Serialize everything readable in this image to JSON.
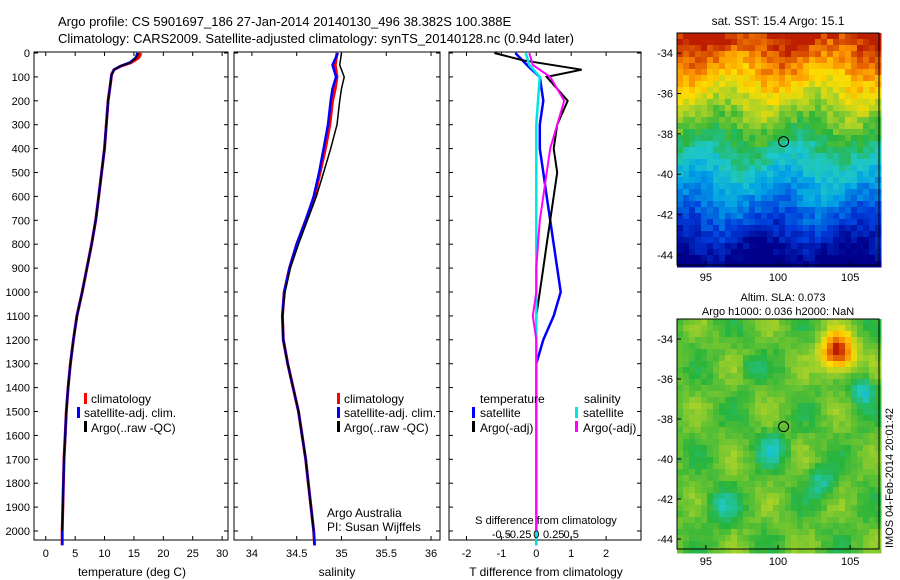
{
  "header": {
    "title_line1": "Argo profile: CS 5901697_186 27-Jan-2014 20140130_496 38.382S 100.388E",
    "title_line2": "Climatology: CARS2009. Satellite-adjusted climatology: synTS_20140128.nc (0.94d later)"
  },
  "colors": {
    "climatology": "#ff0000",
    "satellite": "#0000ff",
    "argo": "#000000",
    "salinity_satellite": "#00e5e5",
    "salinity_argo": "#ff00ff"
  },
  "annotations": {
    "credit1": "Argo Australia",
    "credit2": "PI: Susan Wijffels",
    "sst_title": "sat. SST: 15.4 Argo: 15.1",
    "sla_title1": "Altim. SLA: 0.073",
    "sla_title2": "Argo h1000: 0.036 h2000: NaN",
    "vertical_stamp": "IMOS 04-Feb-2014 20:01:42",
    "diff_s_label": "S difference from climatology"
  },
  "chart_data": [
    {
      "type": "line",
      "name": "temperature",
      "xlabel": "temperature (deg C)",
      "xlim": [
        -2,
        31
      ],
      "ylim": [
        2100,
        0
      ],
      "xticks": [
        0,
        5,
        10,
        15,
        20,
        25,
        30
      ],
      "yticks": [
        0,
        100,
        200,
        300,
        400,
        500,
        600,
        700,
        800,
        900,
        1000,
        1100,
        1200,
        1300,
        1400,
        1500,
        1600,
        1700,
        1800,
        1900,
        2000
      ],
      "legend": [
        "climatology",
        "satellite-adj. clim.",
        "Argo(..raw -QC)"
      ],
      "series": [
        {
          "name": "climatology",
          "points": [
            [
              16.2,
              0
            ],
            [
              15.8,
              20
            ],
            [
              14.5,
              40
            ],
            [
              12.8,
              55
            ],
            [
              11.6,
              70
            ],
            [
              11.2,
              90
            ],
            [
              11,
              130
            ],
            [
              10.6,
              200
            ],
            [
              10.3,
              300
            ],
            [
              10,
              400
            ],
            [
              9.5,
              500
            ],
            [
              9,
              600
            ],
            [
              8.5,
              700
            ],
            [
              7.8,
              800
            ],
            [
              7,
              900
            ],
            [
              6.2,
              1000
            ],
            [
              5.3,
              1100
            ],
            [
              4.7,
              1200
            ],
            [
              4.2,
              1300
            ],
            [
              3.8,
              1400
            ],
            [
              3.5,
              1500
            ],
            [
              3.3,
              1600
            ],
            [
              3.1,
              1700
            ],
            [
              3,
              1800
            ],
            [
              2.9,
              1900
            ],
            [
              2.8,
              2000
            ],
            [
              2.8,
              2060
            ]
          ]
        },
        {
          "name": "satellite-adj. clim.",
          "points": [
            [
              15.6,
              0
            ],
            [
              15.3,
              20
            ],
            [
              14.3,
              40
            ],
            [
              12.7,
              55
            ],
            [
              11.6,
              70
            ],
            [
              11.2,
              90
            ],
            [
              11,
              130
            ],
            [
              10.6,
              200
            ],
            [
              10.3,
              300
            ],
            [
              10,
              400
            ],
            [
              9.5,
              500
            ],
            [
              9,
              600
            ],
            [
              8.5,
              700
            ],
            [
              7.8,
              800
            ],
            [
              7,
              900
            ],
            [
              6.2,
              1000
            ],
            [
              5.3,
              1100
            ],
            [
              4.7,
              1200
            ],
            [
              4.2,
              1300
            ],
            [
              3.8,
              1400
            ],
            [
              3.5,
              1500
            ],
            [
              3.3,
              1600
            ],
            [
              3.1,
              1700
            ],
            [
              3,
              1800
            ],
            [
              2.9,
              1900
            ],
            [
              2.8,
              2000
            ],
            [
              2.8,
              2060
            ]
          ]
        },
        {
          "name": "Argo(..raw -QC)",
          "points": [
            [
              15.8,
              0
            ],
            [
              15.4,
              20
            ],
            [
              14.4,
              40
            ],
            [
              12.7,
              55
            ],
            [
              11.6,
              70
            ],
            [
              11.2,
              90
            ],
            [
              11,
              130
            ],
            [
              10.6,
              200
            ],
            [
              10.3,
              300
            ],
            [
              10,
              400
            ],
            [
              9.5,
              500
            ],
            [
              9,
              600
            ],
            [
              8.5,
              700
            ],
            [
              7.8,
              800
            ],
            [
              7,
              900
            ],
            [
              6.2,
              1000
            ],
            [
              5.3,
              1100
            ],
            [
              4.7,
              1200
            ],
            [
              4.2,
              1300
            ],
            [
              3.8,
              1400
            ],
            [
              3.5,
              1500
            ],
            [
              3.3,
              1600
            ],
            [
              3.1,
              1700
            ],
            [
              3,
              1800
            ],
            [
              2.9,
              1900
            ],
            [
              2.8,
              2000
            ]
          ]
        }
      ]
    },
    {
      "type": "line",
      "name": "salinity",
      "xlabel": "salinity",
      "xlim": [
        33.8,
        36.1
      ],
      "ylim": [
        2100,
        0
      ],
      "xticks": [
        34,
        34.5,
        35,
        35.5,
        36
      ],
      "legend": [
        "climatology",
        "satellite-adj. clim.",
        "Argo(..raw -QC)"
      ],
      "series": [
        {
          "name": "climatology",
          "points": [
            [
              34.95,
              0
            ],
            [
              34.93,
              50
            ],
            [
              34.95,
              100
            ],
            [
              34.93,
              150
            ],
            [
              34.9,
              200
            ],
            [
              34.87,
              300
            ],
            [
              34.82,
              400
            ],
            [
              34.76,
              500
            ],
            [
              34.7,
              600
            ],
            [
              34.6,
              700
            ],
            [
              34.5,
              800
            ],
            [
              34.42,
              900
            ],
            [
              34.36,
              1000
            ],
            [
              34.34,
              1100
            ],
            [
              34.35,
              1200
            ],
            [
              34.4,
              1300
            ],
            [
              34.46,
              1400
            ],
            [
              34.52,
              1500
            ],
            [
              34.56,
              1600
            ],
            [
              34.6,
              1700
            ],
            [
              34.63,
              1800
            ],
            [
              34.66,
              1900
            ],
            [
              34.69,
              2000
            ],
            [
              34.7,
              2060
            ]
          ]
        },
        {
          "name": "satellite-adj. clim.",
          "points": [
            [
              34.96,
              0
            ],
            [
              34.9,
              50
            ],
            [
              34.94,
              100
            ],
            [
              34.9,
              150
            ],
            [
              34.88,
              200
            ],
            [
              34.85,
              300
            ],
            [
              34.8,
              400
            ],
            [
              34.75,
              500
            ],
            [
              34.69,
              600
            ],
            [
              34.6,
              700
            ],
            [
              34.5,
              800
            ],
            [
              34.42,
              900
            ],
            [
              34.36,
              1000
            ],
            [
              34.34,
              1100
            ],
            [
              34.35,
              1200
            ],
            [
              34.4,
              1300
            ],
            [
              34.46,
              1400
            ],
            [
              34.52,
              1500
            ],
            [
              34.56,
              1600
            ],
            [
              34.6,
              1700
            ],
            [
              34.63,
              1800
            ],
            [
              34.66,
              1900
            ],
            [
              34.69,
              2000
            ],
            [
              34.7,
              2060
            ]
          ]
        },
        {
          "name": "Argo(..raw -QC)",
          "points": [
            [
              35,
              0
            ],
            [
              34.98,
              50
            ],
            [
              35.03,
              100
            ],
            [
              35.0,
              150
            ],
            [
              34.98,
              200
            ],
            [
              34.95,
              300
            ],
            [
              34.88,
              400
            ],
            [
              34.8,
              500
            ],
            [
              34.72,
              600
            ],
            [
              34.62,
              700
            ],
            [
              34.52,
              800
            ],
            [
              34.43,
              900
            ],
            [
              34.37,
              1000
            ],
            [
              34.34,
              1100
            ],
            [
              34.35,
              1200
            ],
            [
              34.4,
              1300
            ],
            [
              34.46,
              1400
            ],
            [
              34.52,
              1500
            ],
            [
              34.56,
              1600
            ],
            [
              34.6,
              1700
            ],
            [
              34.63,
              1800
            ],
            [
              34.66,
              1900
            ],
            [
              34.69,
              2000
            ]
          ]
        }
      ]
    },
    {
      "type": "line",
      "name": "differences",
      "xlabel": "T difference from climatology",
      "xlim": [
        -2.5,
        3
      ],
      "ylim": [
        2100,
        0
      ],
      "xticks": [
        -2,
        -1,
        0,
        1,
        2
      ],
      "xticks_s": [
        "-0.5",
        "-0.25",
        "0",
        "0.25",
        "0.5"
      ],
      "legend_title_left": "temperature",
      "legend_title_right": "salinity",
      "legend": [
        "satellite",
        "Argo(-adj)",
        "satellite",
        "Argo(-adj)"
      ],
      "series": [
        {
          "name": "satellite",
          "points": [
            [
              -0.6,
              0
            ],
            [
              -0.4,
              30
            ],
            [
              -0.2,
              60
            ],
            [
              0.1,
              100
            ],
            [
              0.2,
              200
            ],
            [
              0.1,
              300
            ],
            [
              0.1,
              400
            ],
            [
              0.2,
              500
            ],
            [
              0.3,
              600
            ],
            [
              0.4,
              700
            ],
            [
              0.5,
              800
            ],
            [
              0.6,
              900
            ],
            [
              0.7,
              1000
            ],
            [
              0.5,
              1100
            ],
            [
              0.2,
              1200
            ],
            [
              0,
              1300
            ],
            [
              0,
              2060
            ]
          ]
        },
        {
          "name": "Argo(-adj)",
          "points": [
            [
              -1.2,
              0
            ],
            [
              -0.4,
              30
            ],
            [
              1.3,
              70
            ],
            [
              0.3,
              100
            ],
            [
              0.6,
              150
            ],
            [
              0.9,
              200
            ],
            [
              0.6,
              300
            ],
            [
              0.5,
              400
            ],
            [
              0.6,
              500
            ],
            [
              0.5,
              600
            ],
            [
              0.4,
              700
            ],
            [
              0.3,
              800
            ],
            [
              0.2,
              900
            ],
            [
              0.1,
              1000
            ],
            [
              0,
              1100
            ],
            [
              0,
              2000
            ]
          ]
        },
        {
          "name": "satellite (salinity)",
          "points": [
            [
              -0.3,
              0
            ],
            [
              -0.2,
              50
            ],
            [
              0.1,
              100
            ],
            [
              0.05,
              200
            ],
            [
              0,
              300
            ],
            [
              0,
              400
            ],
            [
              0,
              500
            ],
            [
              0,
              700
            ],
            [
              0,
              1000
            ],
            [
              0,
              1200
            ],
            [
              0,
              1500
            ],
            [
              0,
              2060
            ]
          ]
        },
        {
          "name": "Argo(-adj) (salinity)",
          "points": [
            [
              -0.2,
              0
            ],
            [
              -0.1,
              50
            ],
            [
              0.4,
              100
            ],
            [
              0.8,
              200
            ],
            [
              0.6,
              300
            ],
            [
              0.4,
              400
            ],
            [
              0.3,
              500
            ],
            [
              0.2,
              600
            ],
            [
              0.1,
              700
            ],
            [
              0.05,
              800
            ],
            [
              0,
              900
            ],
            [
              0,
              1000
            ],
            [
              -0.1,
              1100
            ],
            [
              0,
              1200
            ],
            [
              0,
              2000
            ]
          ]
        }
      ]
    },
    {
      "type": "heatmap",
      "name": "sst_map",
      "xticks": [
        95,
        100,
        105
      ],
      "yticks": [
        -34,
        -36,
        -38,
        -40,
        -42,
        -44
      ],
      "xlim": [
        93,
        107
      ],
      "ylim": [
        -44.5,
        -33
      ]
    },
    {
      "type": "heatmap",
      "name": "sla_map",
      "xticks": [
        95,
        100,
        105
      ],
      "yticks": [
        -34,
        -36,
        -38,
        -40,
        -42,
        -44
      ],
      "xlim": [
        93,
        107
      ],
      "ylim": [
        -44.5,
        -33
      ]
    }
  ]
}
